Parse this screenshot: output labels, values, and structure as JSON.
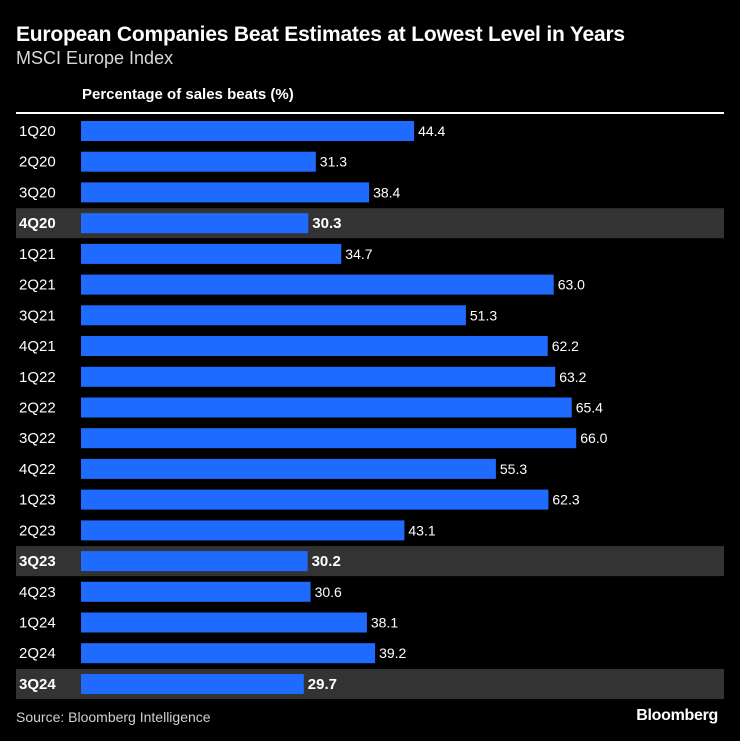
{
  "header": {
    "title": "European Companies Beat Estimates at Lowest Level in Years",
    "subtitle": "MSCI Europe Index",
    "column_label": "Percentage of sales beats (%)"
  },
  "footer": {
    "source": "Source: Bloomberg Intelligence",
    "brand": "Bloomberg"
  },
  "colors": {
    "background": "#000000",
    "bar": "#1F6BFF",
    "highlight_row": "#333333",
    "text": "#FFFFFF"
  },
  "chart_data": {
    "type": "bar",
    "orientation": "horizontal",
    "title": "European Companies Beat Estimates at Lowest Level in Years",
    "subtitle": "MSCI Europe Index",
    "xlabel": "Percentage of sales beats (%)",
    "ylabel": "",
    "xlim": [
      0,
      80
    ],
    "grid": false,
    "categories": [
      "1Q20",
      "2Q20",
      "3Q20",
      "4Q20",
      "1Q21",
      "2Q21",
      "3Q21",
      "4Q21",
      "1Q22",
      "2Q22",
      "3Q22",
      "4Q22",
      "1Q23",
      "2Q23",
      "3Q23",
      "4Q23",
      "1Q24",
      "2Q24",
      "3Q24"
    ],
    "values": [
      44.4,
      31.3,
      38.4,
      30.3,
      34.7,
      63.0,
      51.3,
      62.2,
      63.2,
      65.4,
      66.0,
      55.3,
      62.3,
      43.1,
      30.2,
      30.6,
      38.1,
      39.2,
      29.7
    ],
    "value_labels": [
      "44.4",
      "31.3",
      "38.4",
      "30.3",
      "34.7",
      "63.0",
      "51.3",
      "62.2",
      "63.2",
      "65.4",
      "66.0",
      "55.3",
      "62.3",
      "43.1",
      "30.2",
      "30.6",
      "38.1",
      "39.2",
      "29.7"
    ],
    "highlighted": [
      "4Q20",
      "3Q23",
      "3Q24"
    ],
    "source": "Source: Bloomberg Intelligence"
  }
}
